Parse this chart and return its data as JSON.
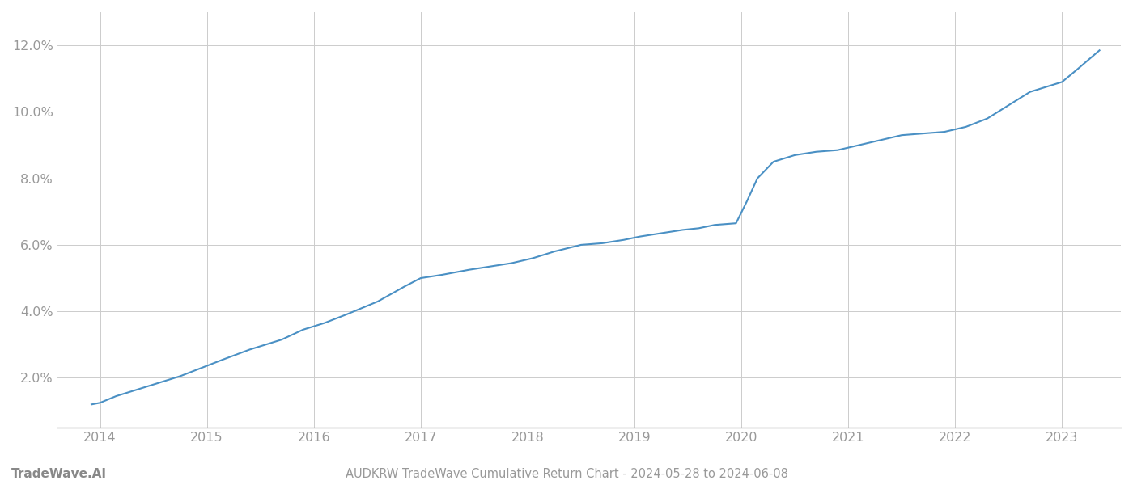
{
  "title": "AUDKRW TradeWave Cumulative Return Chart - 2024-05-28 to 2024-06-08",
  "watermark": "TradeWave.AI",
  "line_color": "#4a90c4",
  "background_color": "#ffffff",
  "grid_color": "#cccccc",
  "x_years": [
    2014,
    2015,
    2016,
    2017,
    2018,
    2019,
    2020,
    2021,
    2022,
    2023
  ],
  "x_data": [
    2013.92,
    2014.0,
    2014.15,
    2014.35,
    2014.55,
    2014.75,
    2014.95,
    2015.15,
    2015.4,
    2015.7,
    2015.9,
    2016.1,
    2016.3,
    2016.6,
    2016.85,
    2017.0,
    2017.2,
    2017.45,
    2017.65,
    2017.85,
    2018.05,
    2018.25,
    2018.5,
    2018.7,
    2018.9,
    2019.05,
    2019.25,
    2019.45,
    2019.6,
    2019.75,
    2019.95,
    2020.05,
    2020.15,
    2020.3,
    2020.5,
    2020.7,
    2020.9,
    2021.1,
    2021.3,
    2021.5,
    2021.7,
    2021.9,
    2022.1,
    2022.3,
    2022.5,
    2022.7,
    2022.9,
    2023.0,
    2023.15,
    2023.35
  ],
  "y_data": [
    1.2,
    1.25,
    1.45,
    1.65,
    1.85,
    2.05,
    2.3,
    2.55,
    2.85,
    3.15,
    3.45,
    3.65,
    3.9,
    4.3,
    4.75,
    5.0,
    5.1,
    5.25,
    5.35,
    5.45,
    5.6,
    5.8,
    6.0,
    6.05,
    6.15,
    6.25,
    6.35,
    6.45,
    6.5,
    6.6,
    6.65,
    7.3,
    8.0,
    8.5,
    8.7,
    8.8,
    8.85,
    9.0,
    9.15,
    9.3,
    9.35,
    9.4,
    9.55,
    9.8,
    10.2,
    10.6,
    10.8,
    10.9,
    11.3,
    11.85
  ],
  "ylim": [
    0.5,
    13.0
  ],
  "yticks": [
    2.0,
    4.0,
    6.0,
    8.0,
    10.0,
    12.0
  ],
  "xlim": [
    2013.6,
    2023.55
  ],
  "tick_label_color": "#999999",
  "title_color": "#999999",
  "watermark_color": "#888888",
  "line_width": 1.5,
  "title_fontsize": 10.5,
  "tick_fontsize": 11.5,
  "watermark_fontsize": 11
}
